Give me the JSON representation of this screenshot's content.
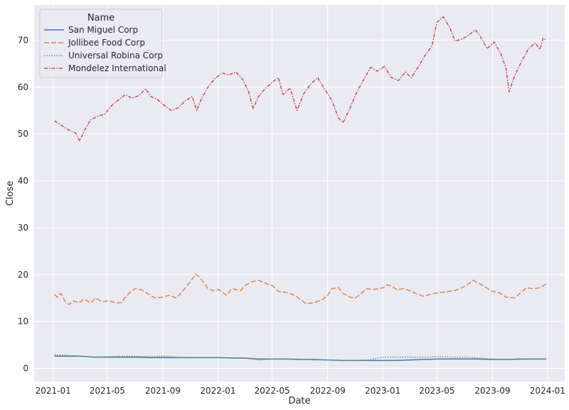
{
  "chart_data": {
    "type": "line",
    "xlabel": "Date",
    "ylabel": "Close",
    "xlim": [
      "2020-11-20",
      "2024-02-08"
    ],
    "ylim": [
      -2.8,
      77.5
    ],
    "x_ticks": [
      "2021-01",
      "2021-05",
      "2021-09",
      "2022-01",
      "2022-05",
      "2022-09",
      "2023-01",
      "2023-05",
      "2023-09",
      "2024-01"
    ],
    "y_ticks": [
      0,
      10,
      20,
      30,
      40,
      50,
      60,
      70
    ],
    "grid": true,
    "legend": {
      "title": "Name",
      "placement": "top-left"
    },
    "series": [
      {
        "name": "San Miguel Corp",
        "color": "#4c72b0",
        "dash": "solid",
        "points": [
          [
            "2021-01-04",
            2.6
          ],
          [
            "2021-02-01",
            2.6
          ],
          [
            "2021-03-01",
            2.6
          ],
          [
            "2021-04-01",
            2.4
          ],
          [
            "2021-05-03",
            2.4
          ],
          [
            "2021-06-01",
            2.4
          ],
          [
            "2021-07-01",
            2.4
          ],
          [
            "2021-08-02",
            2.3
          ],
          [
            "2021-09-01",
            2.3
          ],
          [
            "2021-10-01",
            2.3
          ],
          [
            "2021-11-01",
            2.3
          ],
          [
            "2021-12-01",
            2.3
          ],
          [
            "2022-01-03",
            2.3
          ],
          [
            "2022-02-01",
            2.2
          ],
          [
            "2022-03-01",
            2.2
          ],
          [
            "2022-04-01",
            2.0
          ],
          [
            "2022-05-02",
            2.0
          ],
          [
            "2022-06-01",
            2.0
          ],
          [
            "2022-07-01",
            1.9
          ],
          [
            "2022-08-01",
            1.9
          ],
          [
            "2022-09-01",
            1.8
          ],
          [
            "2022-10-03",
            1.7
          ],
          [
            "2022-11-01",
            1.7
          ],
          [
            "2022-12-01",
            1.7
          ],
          [
            "2023-01-02",
            1.7
          ],
          [
            "2023-02-01",
            1.7
          ],
          [
            "2023-03-01",
            1.8
          ],
          [
            "2023-04-03",
            1.9
          ],
          [
            "2023-05-01",
            2.0
          ],
          [
            "2023-06-01",
            2.0
          ],
          [
            "2023-07-03",
            2.0
          ],
          [
            "2023-08-01",
            2.0
          ],
          [
            "2023-09-01",
            1.9
          ],
          [
            "2023-10-02",
            1.9
          ],
          [
            "2023-11-01",
            2.0
          ],
          [
            "2023-12-01",
            2.0
          ],
          [
            "2023-12-29",
            2.0
          ]
        ]
      },
      {
        "name": "Jollibee Food Corp",
        "color": "#dd8452",
        "dash": "dashed",
        "points": [
          [
            "2021-01-04",
            15.8
          ],
          [
            "2021-01-10",
            15.2
          ],
          [
            "2021-01-18",
            16.0
          ],
          [
            "2021-01-28",
            14.2
          ],
          [
            "2021-02-05",
            13.6
          ],
          [
            "2021-02-15",
            14.4
          ],
          [
            "2021-02-28",
            14.0
          ],
          [
            "2021-03-10",
            14.8
          ],
          [
            "2021-03-25",
            14.0
          ],
          [
            "2021-04-05",
            15.0
          ],
          [
            "2021-04-20",
            14.2
          ],
          [
            "2021-05-05",
            14.4
          ],
          [
            "2021-05-20",
            14.0
          ],
          [
            "2021-06-01",
            14.0
          ],
          [
            "2021-06-10",
            15.2
          ],
          [
            "2021-06-20",
            16.2
          ],
          [
            "2021-07-01",
            17.0
          ],
          [
            "2021-07-15",
            16.8
          ],
          [
            "2021-08-01",
            15.8
          ],
          [
            "2021-08-15",
            15.0
          ],
          [
            "2021-09-01",
            15.2
          ],
          [
            "2021-09-15",
            15.6
          ],
          [
            "2021-10-01",
            15.0
          ],
          [
            "2021-10-15",
            16.5
          ],
          [
            "2021-10-28",
            18.0
          ],
          [
            "2021-11-05",
            19.0
          ],
          [
            "2021-11-12",
            20.1
          ],
          [
            "2021-11-22",
            19.4
          ],
          [
            "2021-12-01",
            18.2
          ],
          [
            "2021-12-10",
            17.0
          ],
          [
            "2021-12-20",
            16.6
          ],
          [
            "2022-01-03",
            16.8
          ],
          [
            "2022-01-20",
            15.6
          ],
          [
            "2022-02-01",
            17.0
          ],
          [
            "2022-02-20",
            16.6
          ],
          [
            "2022-03-01",
            17.6
          ],
          [
            "2022-03-15",
            18.4
          ],
          [
            "2022-04-01",
            18.8
          ],
          [
            "2022-04-20",
            18.0
          ],
          [
            "2022-05-02",
            17.6
          ],
          [
            "2022-05-15",
            16.4
          ],
          [
            "2022-06-01",
            16.2
          ],
          [
            "2022-06-20",
            15.6
          ],
          [
            "2022-07-01",
            14.8
          ],
          [
            "2022-07-15",
            13.8
          ],
          [
            "2022-08-01",
            14.0
          ],
          [
            "2022-08-20",
            14.6
          ],
          [
            "2022-09-01",
            15.6
          ],
          [
            "2022-09-10",
            17.0
          ],
          [
            "2022-09-25",
            17.2
          ],
          [
            "2022-10-05",
            16.0
          ],
          [
            "2022-10-20",
            15.2
          ],
          [
            "2022-11-01",
            15.0
          ],
          [
            "2022-11-15",
            16.0
          ],
          [
            "2022-11-25",
            17.0
          ],
          [
            "2022-12-10",
            16.8
          ],
          [
            "2023-01-02",
            17.2
          ],
          [
            "2023-01-10",
            17.8
          ],
          [
            "2023-01-20",
            17.6
          ],
          [
            "2023-02-01",
            16.8
          ],
          [
            "2023-02-15",
            17.0
          ],
          [
            "2023-03-01",
            16.6
          ],
          [
            "2023-03-15",
            16.0
          ],
          [
            "2023-04-01",
            15.4
          ],
          [
            "2023-04-10",
            15.6
          ],
          [
            "2023-04-25",
            16.0
          ],
          [
            "2023-05-10",
            16.2
          ],
          [
            "2023-05-25",
            16.4
          ],
          [
            "2023-06-10",
            16.6
          ],
          [
            "2023-06-25",
            17.2
          ],
          [
            "2023-07-10",
            18.0
          ],
          [
            "2023-07-20",
            18.8
          ],
          [
            "2023-08-01",
            18.2
          ],
          [
            "2023-08-15",
            17.4
          ],
          [
            "2023-09-01",
            16.4
          ],
          [
            "2023-09-15",
            16.2
          ],
          [
            "2023-10-01",
            15.2
          ],
          [
            "2023-10-20",
            15.0
          ],
          [
            "2023-11-01",
            16.0
          ],
          [
            "2023-11-15",
            17.2
          ],
          [
            "2023-12-01",
            17.0
          ],
          [
            "2023-12-15",
            17.2
          ],
          [
            "2023-12-29",
            18.0
          ]
        ]
      },
      {
        "name": "Universal Robina Corp",
        "color": "#55a868",
        "dash": "dotted",
        "points": [
          [
            "2021-01-04",
            2.9
          ],
          [
            "2021-02-01",
            2.8
          ],
          [
            "2021-03-01",
            2.6
          ],
          [
            "2021-04-01",
            2.4
          ],
          [
            "2021-05-03",
            2.5
          ],
          [
            "2021-06-01",
            2.6
          ],
          [
            "2021-07-01",
            2.6
          ],
          [
            "2021-08-02",
            2.5
          ],
          [
            "2021-09-01",
            2.6
          ],
          [
            "2021-10-01",
            2.4
          ],
          [
            "2021-11-01",
            2.3
          ],
          [
            "2021-12-01",
            2.3
          ],
          [
            "2022-01-03",
            2.3
          ],
          [
            "2022-02-01",
            2.2
          ],
          [
            "2022-03-01",
            2.2
          ],
          [
            "2022-04-01",
            1.8
          ],
          [
            "2022-05-02",
            2.0
          ],
          [
            "2022-06-01",
            2.0
          ],
          [
            "2022-07-01",
            2.0
          ],
          [
            "2022-08-01",
            1.8
          ],
          [
            "2022-09-01",
            1.8
          ],
          [
            "2022-10-03",
            1.7
          ],
          [
            "2022-11-01",
            1.7
          ],
          [
            "2022-12-01",
            1.8
          ],
          [
            "2023-01-02",
            2.4
          ],
          [
            "2023-02-01",
            2.4
          ],
          [
            "2023-03-01",
            2.4
          ],
          [
            "2023-04-03",
            2.4
          ],
          [
            "2023-05-01",
            2.5
          ],
          [
            "2023-06-01",
            2.4
          ],
          [
            "2023-07-03",
            2.4
          ],
          [
            "2023-08-01",
            2.2
          ],
          [
            "2023-09-01",
            2.0
          ],
          [
            "2023-10-02",
            1.9
          ],
          [
            "2023-11-01",
            1.9
          ],
          [
            "2023-12-01",
            2.0
          ],
          [
            "2023-12-29",
            2.0
          ]
        ]
      },
      {
        "name": "Mondelez International",
        "color": "#c44e52",
        "dash": "dashdot",
        "points": [
          [
            "2021-01-04",
            52.8
          ],
          [
            "2021-01-20",
            51.8
          ],
          [
            "2021-02-05",
            50.8
          ],
          [
            "2021-02-20",
            50.2
          ],
          [
            "2021-03-01",
            48.5
          ],
          [
            "2021-03-10",
            50.5
          ],
          [
            "2021-03-25",
            53.0
          ],
          [
            "2021-04-10",
            53.8
          ],
          [
            "2021-04-25",
            54.2
          ],
          [
            "2021-05-10",
            56.0
          ],
          [
            "2021-05-25",
            57.2
          ],
          [
            "2021-06-10",
            58.4
          ],
          [
            "2021-06-25",
            57.6
          ],
          [
            "2021-07-10",
            58.2
          ],
          [
            "2021-07-25",
            59.6
          ],
          [
            "2021-08-05",
            58.0
          ],
          [
            "2021-08-20",
            57.4
          ],
          [
            "2021-09-05",
            56.0
          ],
          [
            "2021-09-20",
            55.0
          ],
          [
            "2021-10-05",
            55.6
          ],
          [
            "2021-10-20",
            57.0
          ],
          [
            "2021-11-05",
            58.0
          ],
          [
            "2021-11-15",
            55.0
          ],
          [
            "2021-11-25",
            57.4
          ],
          [
            "2021-12-10",
            60.0
          ],
          [
            "2021-12-25",
            61.8
          ],
          [
            "2022-01-10",
            63.0
          ],
          [
            "2022-01-25",
            62.6
          ],
          [
            "2022-02-10",
            63.2
          ],
          [
            "2022-02-25",
            61.6
          ],
          [
            "2022-03-10",
            59.0
          ],
          [
            "2022-03-20",
            55.4
          ],
          [
            "2022-04-01",
            58.0
          ],
          [
            "2022-04-15",
            59.6
          ],
          [
            "2022-05-01",
            61.0
          ],
          [
            "2022-05-15",
            62.0
          ],
          [
            "2022-05-25",
            58.4
          ],
          [
            "2022-06-10",
            59.8
          ],
          [
            "2022-06-25",
            55.0
          ],
          [
            "2022-07-10",
            58.6
          ],
          [
            "2022-07-25",
            60.6
          ],
          [
            "2022-08-10",
            62.0
          ],
          [
            "2022-08-25",
            59.6
          ],
          [
            "2022-09-10",
            57.2
          ],
          [
            "2022-09-25",
            53.4
          ],
          [
            "2022-10-05",
            52.4
          ],
          [
            "2022-10-20",
            55.4
          ],
          [
            "2022-11-05",
            59.0
          ],
          [
            "2022-11-20",
            61.6
          ],
          [
            "2022-12-05",
            64.2
          ],
          [
            "2022-12-20",
            63.4
          ],
          [
            "2023-01-05",
            64.4
          ],
          [
            "2023-01-20",
            62.0
          ],
          [
            "2023-02-05",
            61.4
          ],
          [
            "2023-02-20",
            63.2
          ],
          [
            "2023-03-05",
            62.0
          ],
          [
            "2023-03-20",
            64.2
          ],
          [
            "2023-04-05",
            66.8
          ],
          [
            "2023-04-20",
            68.8
          ],
          [
            "2023-05-01",
            73.8
          ],
          [
            "2023-05-15",
            75.0
          ],
          [
            "2023-05-30",
            72.6
          ],
          [
            "2023-06-10",
            69.8
          ],
          [
            "2023-06-25",
            70.2
          ],
          [
            "2023-07-10",
            71.0
          ],
          [
            "2023-07-25",
            72.2
          ],
          [
            "2023-08-05",
            70.8
          ],
          [
            "2023-08-20",
            68.2
          ],
          [
            "2023-09-05",
            69.6
          ],
          [
            "2023-09-20",
            67.0
          ],
          [
            "2023-10-01",
            64.0
          ],
          [
            "2023-10-08",
            59.0
          ],
          [
            "2023-10-20",
            62.4
          ],
          [
            "2023-11-05",
            65.6
          ],
          [
            "2023-11-20",
            68.2
          ],
          [
            "2023-12-05",
            69.4
          ],
          [
            "2023-12-15",
            68.0
          ],
          [
            "2023-12-22",
            70.4
          ],
          [
            "2023-12-29",
            70.0
          ]
        ]
      }
    ]
  }
}
